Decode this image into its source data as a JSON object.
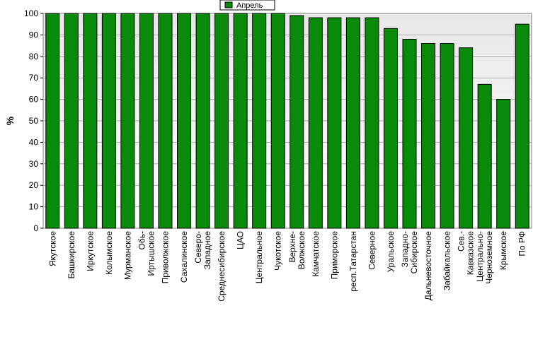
{
  "chart_data": {
    "type": "bar",
    "ylabel": "%",
    "ylim": [
      0,
      100
    ],
    "yticks": [
      0,
      10,
      20,
      30,
      40,
      50,
      60,
      70,
      80,
      90,
      100
    ],
    "grid": true,
    "legend_position": "top-center",
    "series": [
      {
        "name": "Апрель",
        "color": "#0a8a0a",
        "values": [
          100,
          100,
          100,
          100,
          100,
          100,
          100,
          100,
          100,
          100,
          100,
          100,
          100,
          99,
          98,
          98,
          98,
          98,
          93,
          88,
          86,
          86,
          84,
          67,
          60,
          95
        ]
      }
    ],
    "categories": [
      [
        "Якутское"
      ],
      [
        "Башкирское"
      ],
      [
        "Иркутское"
      ],
      [
        "Колымское"
      ],
      [
        "Мурманское"
      ],
      [
        "Обь-",
        "Иртышское"
      ],
      [
        "Приволжское"
      ],
      [
        "Сахалинское"
      ],
      [
        "Северо-",
        "Западное"
      ],
      [
        "Среднесибирское"
      ],
      [
        "ЦАО"
      ],
      [
        "Центральное"
      ],
      [
        "Чукотское"
      ],
      [
        "Верхне-",
        "Волжское"
      ],
      [
        "Камчатское"
      ],
      [
        "Приморское"
      ],
      [
        "респ.Татарстан"
      ],
      [
        "Северное"
      ],
      [
        "Уральское"
      ],
      [
        "Западно-",
        "Сибирское"
      ],
      [
        "Дальневосточное"
      ],
      [
        "Забайкальское"
      ],
      [
        "Сев.-",
        "Кавказское"
      ],
      [
        "Центрально-",
        "Черноземное"
      ],
      [
        "Крымское"
      ],
      [
        "По РФ"
      ]
    ]
  }
}
